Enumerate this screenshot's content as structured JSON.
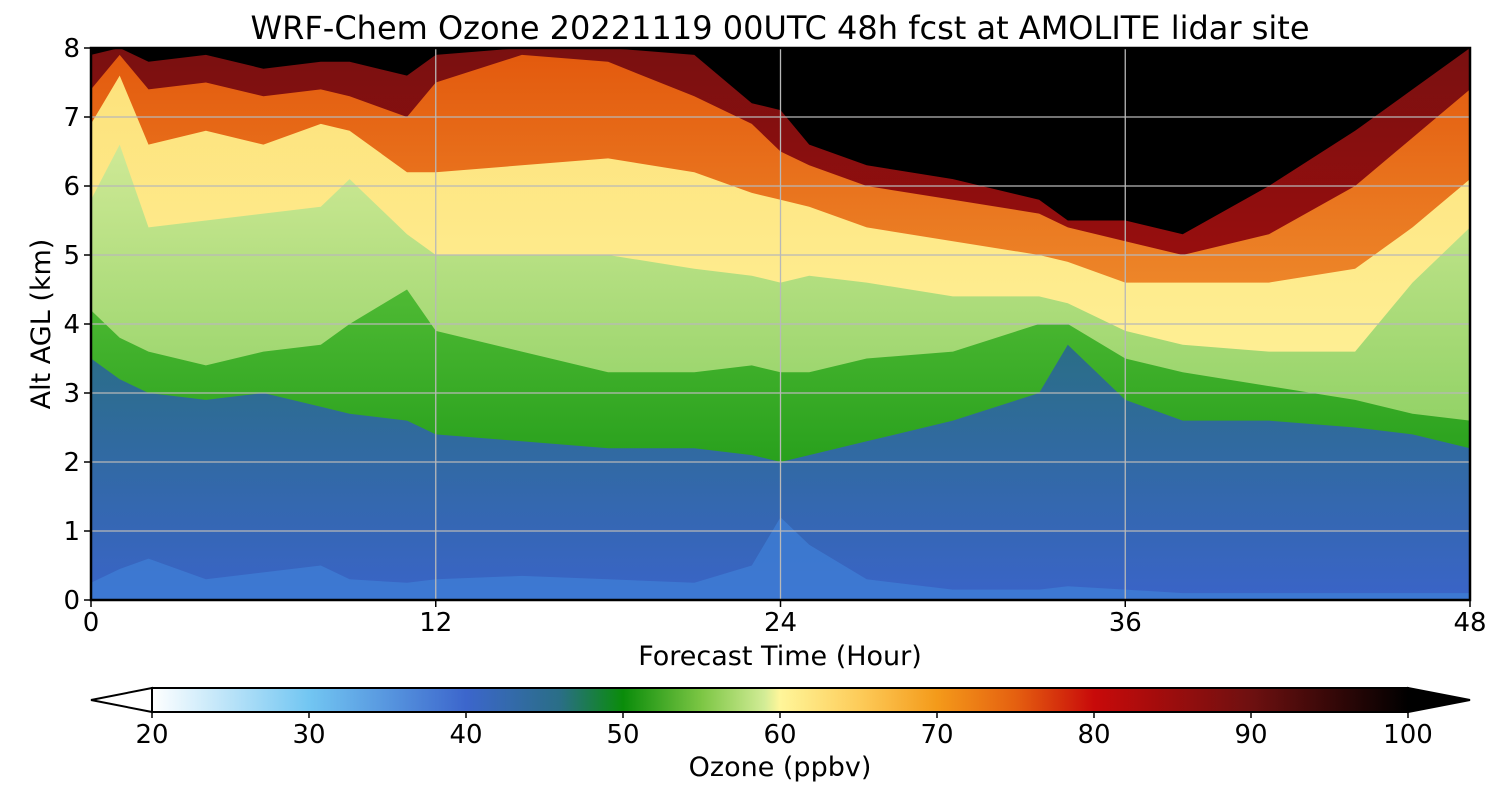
{
  "chart_data": {
    "type": "heatmap",
    "title": "WRF-Chem Ozone  20221119 00UTC 48h fcst at AMOLITE lidar site",
    "xlabel": "Forecast Time (Hour)",
    "ylabel": "Alt AGL (km)",
    "xlim": [
      0,
      48
    ],
    "ylim": [
      0,
      8
    ],
    "xticks": [
      0,
      12,
      24,
      36,
      48
    ],
    "yticks": [
      0,
      1,
      2,
      3,
      4,
      5,
      6,
      7,
      8
    ],
    "grid": true,
    "x_hours": [
      0,
      1,
      2,
      4,
      6,
      8,
      9,
      11,
      12,
      15,
      18,
      21,
      23,
      24,
      25,
      27,
      30,
      33,
      34,
      36,
      38,
      41,
      44,
      46,
      48
    ],
    "layers": [
      {
        "name": "blue_top",
        "threshold_ppbv": 46,
        "altitude_km": [
          3.5,
          3.2,
          3.0,
          2.9,
          3.0,
          2.8,
          2.7,
          2.6,
          2.4,
          2.3,
          2.2,
          2.2,
          2.1,
          2.0,
          2.1,
          2.3,
          2.6,
          3.0,
          3.7,
          2.9,
          2.6,
          2.6,
          2.5,
          2.4,
          2.2
        ]
      },
      {
        "name": "green_dark_top",
        "threshold_ppbv": 50,
        "altitude_km": [
          4.2,
          3.8,
          3.6,
          3.4,
          3.6,
          3.7,
          4.0,
          4.5,
          3.9,
          3.6,
          3.3,
          3.3,
          3.4,
          3.3,
          3.3,
          3.5,
          3.6,
          4.0,
          4.0,
          3.5,
          3.3,
          3.1,
          2.9,
          2.7,
          2.6
        ]
      },
      {
        "name": "green_light_top",
        "threshold_ppbv": 58,
        "altitude_km": [
          5.8,
          6.6,
          5.4,
          5.5,
          5.6,
          5.7,
          6.1,
          5.3,
          5.0,
          5.0,
          5.0,
          4.8,
          4.7,
          4.6,
          4.7,
          4.6,
          4.4,
          4.4,
          4.3,
          3.9,
          3.7,
          3.6,
          3.6,
          4.6,
          5.4
        ]
      },
      {
        "name": "yellow_top",
        "threshold_ppbv": 66,
        "altitude_km": [
          6.9,
          7.6,
          6.6,
          6.8,
          6.6,
          6.9,
          6.8,
          6.2,
          6.2,
          6.3,
          6.4,
          6.2,
          5.9,
          5.8,
          5.7,
          5.4,
          5.2,
          5.0,
          4.9,
          4.6,
          4.6,
          4.6,
          4.8,
          5.4,
          6.1
        ]
      },
      {
        "name": "orange_top",
        "threshold_ppbv": 78,
        "altitude_km": [
          7.4,
          7.9,
          7.4,
          7.5,
          7.3,
          7.4,
          7.3,
          7.0,
          7.5,
          7.9,
          7.8,
          7.3,
          6.9,
          6.5,
          6.3,
          6.0,
          5.8,
          5.6,
          5.4,
          5.2,
          5.0,
          5.3,
          6.0,
          6.7,
          7.4
        ]
      },
      {
        "name": "red_top",
        "threshold_ppbv": 92,
        "altitude_km": [
          7.9,
          8.0,
          7.8,
          7.9,
          7.7,
          7.8,
          7.8,
          7.6,
          7.9,
          8.0,
          8.0,
          7.9,
          7.2,
          7.1,
          6.6,
          6.3,
          6.1,
          5.8,
          5.5,
          5.5,
          5.3,
          6.0,
          6.8,
          7.4,
          8.0
        ]
      }
    ],
    "colorbar": {
      "label": "Ozone  (ppbv)",
      "min": 20,
      "max": 100,
      "ticks": [
        20,
        30,
        40,
        50,
        60,
        70,
        80,
        90,
        100
      ],
      "extend": "both",
      "stops": [
        {
          "v": 20,
          "c": "#ffffff"
        },
        {
          "v": 30,
          "c": "#72c6f2"
        },
        {
          "v": 40,
          "c": "#3c66cc"
        },
        {
          "v": 46,
          "c": "#2a6e86"
        },
        {
          "v": 50,
          "c": "#0a8c0a"
        },
        {
          "v": 55,
          "c": "#7cc644"
        },
        {
          "v": 59,
          "c": "#d2ec96"
        },
        {
          "v": 60,
          "c": "#fff69a"
        },
        {
          "v": 65,
          "c": "#fdcc5a"
        },
        {
          "v": 70,
          "c": "#f49a1a"
        },
        {
          "v": 75,
          "c": "#e56010"
        },
        {
          "v": 80,
          "c": "#c80a0a"
        },
        {
          "v": 90,
          "c": "#6e1010"
        },
        {
          "v": 100,
          "c": "#000000"
        }
      ]
    }
  }
}
